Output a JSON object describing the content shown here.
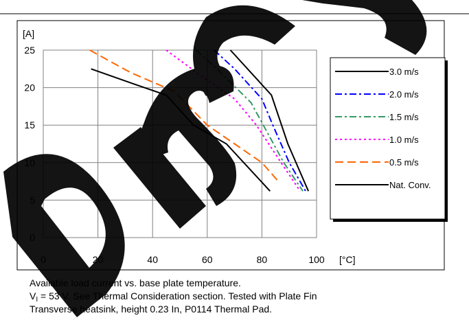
{
  "chart_data": {
    "type": "line",
    "y_unit": "[A]",
    "x_unit": "[°C]",
    "xlim": [
      0,
      100
    ],
    "ylim": [
      0,
      25
    ],
    "x_ticks": [
      0,
      20,
      40,
      60,
      80,
      100
    ],
    "y_ticks": [
      0,
      5,
      10,
      15,
      20,
      25
    ],
    "grid": true,
    "legend_position": "right",
    "series": [
      {
        "name": "3.0 m/s",
        "color": "#000000",
        "dash": "solid",
        "points": [
          [
            68.5,
            25
          ],
          [
            83.5,
            19
          ],
          [
            89.5,
            12.5
          ],
          [
            97,
            6.2
          ]
        ]
      },
      {
        "name": "2.0 m/s",
        "color": "#0000ff",
        "dash": "dashdot",
        "points": [
          [
            62.5,
            25
          ],
          [
            70,
            22.5
          ],
          [
            80,
            18.5
          ],
          [
            84,
            15
          ],
          [
            90,
            10
          ],
          [
            96,
            6.2
          ]
        ]
      },
      {
        "name": "1.5 m/s",
        "color": "#339966",
        "dash": "dashdot",
        "points": [
          [
            56,
            25
          ],
          [
            65,
            22
          ],
          [
            76,
            18
          ],
          [
            82,
            14
          ],
          [
            88,
            10
          ],
          [
            95,
            6.2
          ]
        ]
      },
      {
        "name": "1.0 m/s",
        "color": "#ff00ff",
        "dash": "dotted",
        "points": [
          [
            45,
            25
          ],
          [
            58,
            21.5
          ],
          [
            70,
            18.5
          ],
          [
            78,
            15
          ],
          [
            87,
            10
          ],
          [
            94,
            6.2
          ]
        ]
      },
      {
        "name": "0.5 m/s",
        "color": "#ff6600",
        "dash": "dashed",
        "points": [
          [
            17,
            25
          ],
          [
            32,
            22
          ],
          [
            48,
            19.5
          ],
          [
            60,
            15
          ],
          [
            70,
            12.5
          ],
          [
            80,
            10
          ],
          [
            86,
            7.5
          ]
        ]
      },
      {
        "name": "Nat. Conv.",
        "color": "#000000",
        "dash": "solid",
        "points": [
          [
            17.5,
            22.5
          ],
          [
            33,
            20.5
          ],
          [
            45,
            19
          ],
          [
            55,
            15
          ],
          [
            67,
            12.5
          ],
          [
            83,
            6.2
          ]
        ]
      }
    ]
  },
  "caption": {
    "line1": "Available load current vs. base plate temperature.",
    "line2_prefix": "V",
    "line2_sub": "I",
    "line2_rest": " = 53 V. See Thermal Consideration section. Tested with Plate Fin",
    "line3": "Transverse heatsink, height 0.23 In, P0114 Thermal Pad."
  },
  "watermark": "DISCONTINUED"
}
